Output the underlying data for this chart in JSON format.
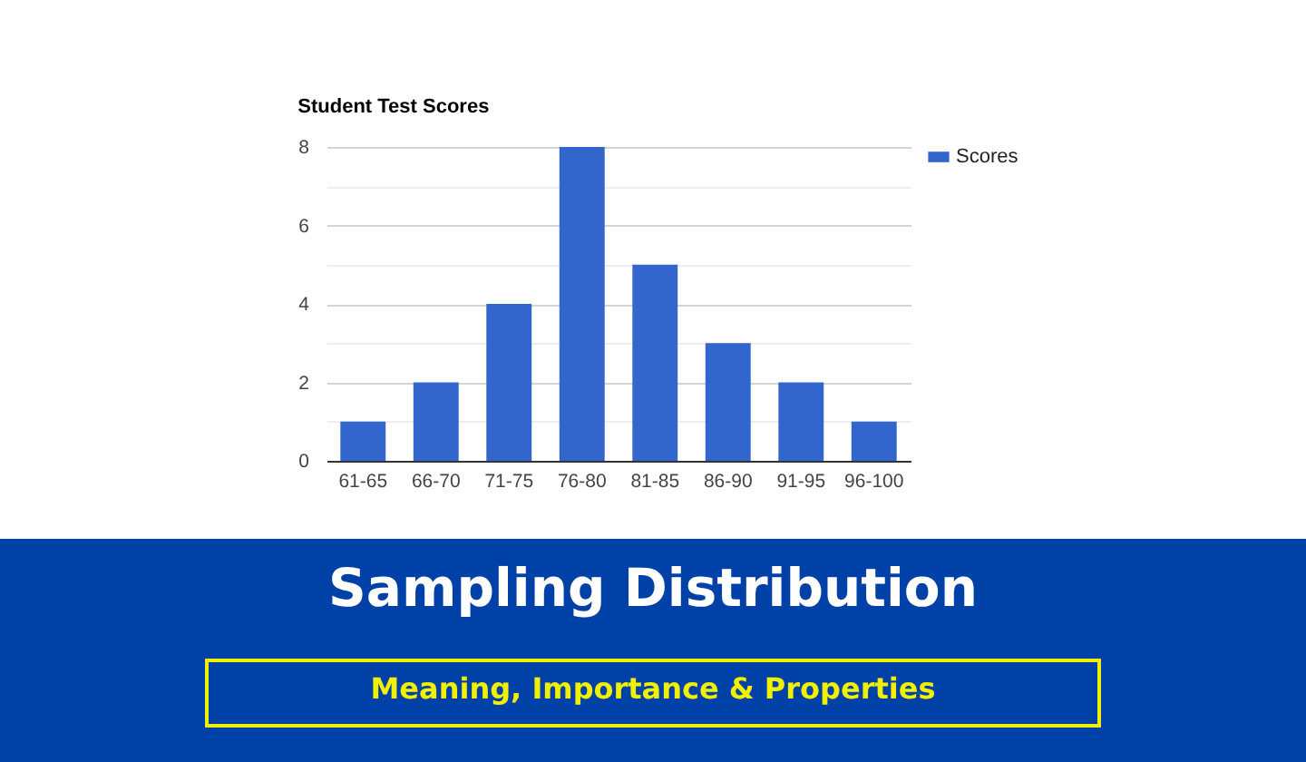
{
  "chart_data": {
    "type": "bar",
    "title": "Student Test Scores",
    "categories": [
      "61-65",
      "66-70",
      "71-75",
      "76-80",
      "81-85",
      "86-90",
      "91-95",
      "96-100"
    ],
    "series": [
      {
        "name": "Scores",
        "color": "#3366cc",
        "values": [
          1,
          2,
          4,
          8,
          5,
          3,
          2,
          1
        ]
      }
    ],
    "ylim": [
      0,
      8
    ],
    "yticks": [
      0,
      {
        "value": 1,
        "label": null
      },
      2,
      {
        "value": 3,
        "label": null
      },
      4,
      {
        "value": 5,
        "label": null
      },
      6,
      {
        "value": 7,
        "label": null
      },
      8
    ],
    "grid": "y",
    "legend": "top right",
    "annotations": [
      "Sampling Distribution",
      "Meaning, Importance & Properties"
    ]
  }
}
